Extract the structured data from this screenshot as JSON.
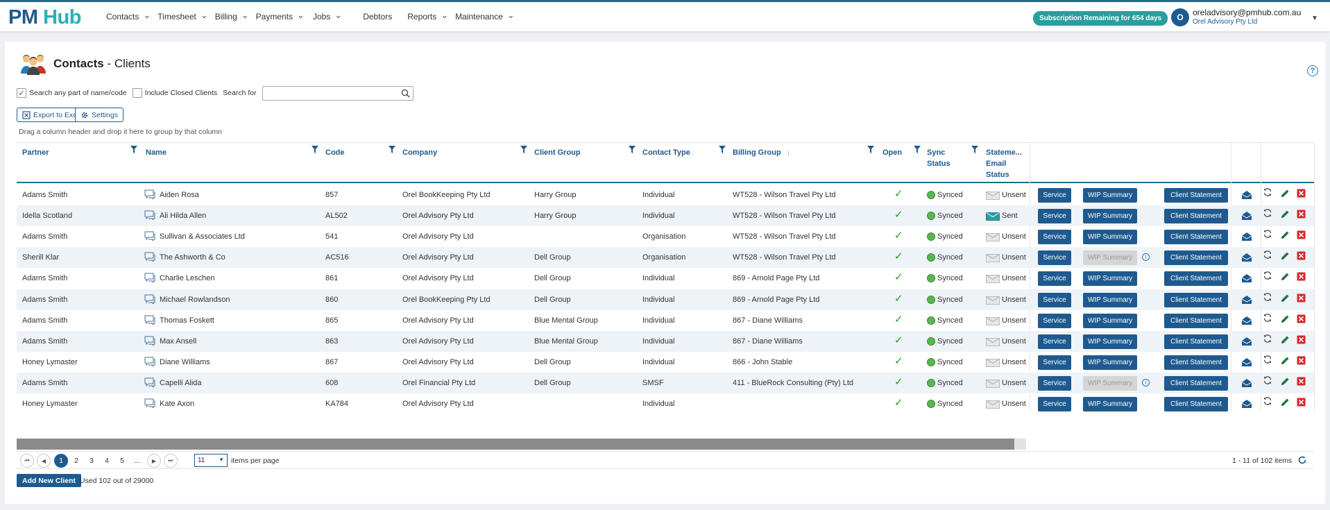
{
  "logo": {
    "pm": "PM",
    "hub": "Hub"
  },
  "nav": [
    {
      "label": "Contacts",
      "dropdown": true
    },
    {
      "label": "Timesheet",
      "dropdown": true
    },
    {
      "label": "Billing",
      "dropdown": true
    },
    {
      "label": "Payments",
      "dropdown": true
    },
    {
      "label": "Jobs",
      "dropdown": true
    },
    {
      "label": "Debtors",
      "dropdown": false
    },
    {
      "label": "Reports",
      "dropdown": true
    },
    {
      "label": "Maintenance",
      "dropdown": true
    }
  ],
  "subscription": "Subscription Remaining for 654 days",
  "user": {
    "initial": "O",
    "email": "oreladvisory@pmhub.com.au",
    "org": "Orel Advisory Pty Ltd"
  },
  "page": {
    "title_main": "Contacts",
    "title_sep": " - ",
    "title_sub": "Clients"
  },
  "search": {
    "any_part_label": "Search any part of name/code",
    "any_part_checked": true,
    "include_closed_label": "Include Closed Clients",
    "include_closed_checked": false,
    "search_for_label": "Search for",
    "value": ""
  },
  "toolbar": {
    "export_label": "Export to Excel",
    "settings_label": "Settings"
  },
  "group_hint": "Drag a column header and drop it here to group by that column",
  "columns": {
    "partner": "Partner",
    "name": "Name",
    "code": "Code",
    "company": "Company",
    "client_group": "Client Group",
    "contact_type": "Contact Type",
    "billing_group": "Billing Group",
    "open": "Open",
    "sync_l1": "Sync",
    "sync_l2": "Status",
    "stmt_l1": "Stateme...",
    "stmt_l2": "Email",
    "stmt_l3": "Status"
  },
  "buttons": {
    "service": "Service",
    "wip": "WIP Summary",
    "statement": "Client Statement"
  },
  "rows": [
    {
      "partner": "Adams Smith",
      "name": "Aiden Rosa",
      "code": "857",
      "company": "Orel BookKeeping Pty Ltd",
      "group": "Harry Group",
      "type": "Individual",
      "billing": "WT528 - Wilson Travel Pty Ltd",
      "sync": "Synced",
      "stmt": "Unsent",
      "wip_enabled": true
    },
    {
      "partner": "Idella Scotland",
      "name": "Ali Hilda Allen",
      "code": "AL502",
      "company": "Orel Advisory Pty Ltd",
      "group": "Harry Group",
      "type": "Individual",
      "billing": "WT528 - Wilson Travel Pty Ltd",
      "sync": "Synced",
      "stmt": "Sent",
      "wip_enabled": true
    },
    {
      "partner": "Adams Smith",
      "name": "Sullivan & Associates Ltd",
      "code": "541",
      "company": "Orel Advisory Pty Ltd",
      "group": "",
      "type": "Organisation",
      "billing": "WT528 - Wilson Travel Pty Ltd",
      "sync": "Synced",
      "stmt": "Unsent",
      "wip_enabled": true
    },
    {
      "partner": "Sherill Klar",
      "name": "The Ashworth & Co",
      "code": "AC516",
      "company": "Orel Advisory Pty Ltd",
      "group": "Dell Group",
      "type": "Organisation",
      "billing": "WT528 - Wilson Travel Pty Ltd",
      "sync": "Synced",
      "stmt": "Unsent",
      "wip_enabled": false
    },
    {
      "partner": "Adams Smith",
      "name": "Charlie Leschen",
      "code": "861",
      "company": "Orel Advisory Pty Ltd",
      "group": "Dell Group",
      "type": "Individual",
      "billing": "869 - Arnold Page Pty Ltd",
      "sync": "Synced",
      "stmt": "Unsent",
      "wip_enabled": true
    },
    {
      "partner": "Adams Smith",
      "name": "Michael Rowlandson",
      "code": "860",
      "company": "Orel BookKeeping Pty Ltd",
      "group": "Dell Group",
      "type": "Individual",
      "billing": "869 - Arnold Page Pty Ltd",
      "sync": "Synced",
      "stmt": "Unsent",
      "wip_enabled": true
    },
    {
      "partner": "Adams Smith",
      "name": "Thomas Foskett",
      "code": "865",
      "company": "Orel Advisory Pty Ltd",
      "group": "Blue Mental Group",
      "type": "Individual",
      "billing": "867 - Diane Williams",
      "sync": "Synced",
      "stmt": "Unsent",
      "wip_enabled": true
    },
    {
      "partner": "Adams Smith",
      "name": "Max Ansell",
      "code": "863",
      "company": "Orel Advisory Pty Ltd",
      "group": "Blue Mental Group",
      "type": "Individual",
      "billing": "867 - Diane Williams",
      "sync": "Synced",
      "stmt": "Unsent",
      "wip_enabled": true
    },
    {
      "partner": "Honey Lymaster",
      "name": "Diane Williams",
      "code": "867",
      "company": "Orel Advisory Pty Ltd",
      "group": "Dell Group",
      "type": "Individual",
      "billing": "866 - John Stable",
      "sync": "Synced",
      "stmt": "Unsent",
      "wip_enabled": true
    },
    {
      "partner": "Adams Smith",
      "name": "Capelli Alida",
      "code": "608",
      "company": "Orel Financial Pty Ltd",
      "group": "Dell Group",
      "type": "SMSF",
      "billing": "411 - BlueRock Consulting (Pty) Ltd",
      "sync": "Synced",
      "stmt": "Unsent",
      "wip_enabled": false
    },
    {
      "partner": "Honey Lymaster",
      "name": "Kate Axon",
      "code": "KA784",
      "company": "Orel Advisory Pty Ltd",
      "group": "",
      "type": "Individual",
      "billing": "",
      "sync": "Synced",
      "stmt": "Unsent",
      "wip_enabled": true
    }
  ],
  "pager": {
    "pages": [
      "1",
      "2",
      "3",
      "4",
      "5",
      "..."
    ],
    "current": "1",
    "page_size": "11",
    "items_per_page_label": "items per page",
    "info": "1 - 11 of 102 items"
  },
  "footer": {
    "add_label": "Add New Client",
    "used": "Used 102 out of 29000"
  },
  "colors": {
    "primary": "#1e5a8f",
    "teal": "#2a9d9f",
    "success": "#2a9d2a",
    "danger": "#d9262b"
  }
}
